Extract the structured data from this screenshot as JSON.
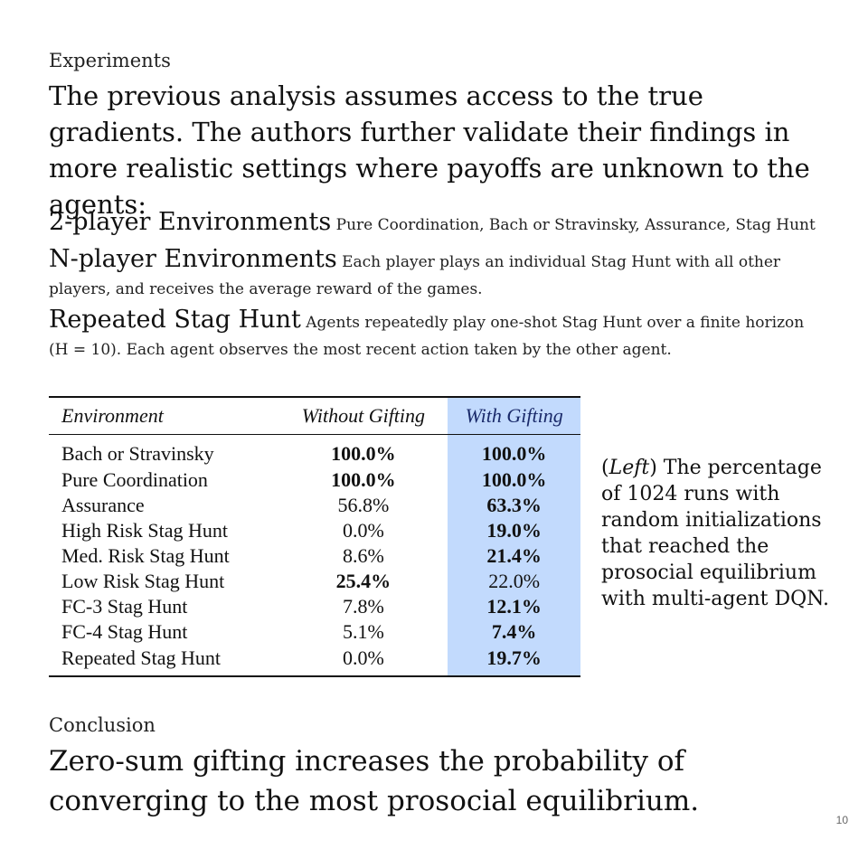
{
  "experiments": {
    "label": "Experiments",
    "lead": "The previous analysis assumes access to the true gradients. The authors further validate their findings in more realistic settings where payoffs are unknown to the agents:"
  },
  "environments": [
    {
      "name": "2-player Environments",
      "desc": "Pure Coordination, Bach or Stravinsky, Assurance, Stag Hunt"
    },
    {
      "name": "N-player Environments",
      "desc": "Each player plays an individual Stag Hunt with all other players, and receives the average reward of the games."
    },
    {
      "name": "Repeated Stag Hunt",
      "desc": "Agents repeatedly play one-shot Stag Hunt over a finite horizon (H = 10). Each agent observes the most recent action taken by the other agent."
    }
  ],
  "table": {
    "headers": {
      "environment": "Environment",
      "without": "Without Gifting",
      "with": "With Gifting"
    },
    "rows": [
      {
        "env": "Bach or Stravinsky",
        "without": "100.0%",
        "with": "100.0%",
        "bold_without": true,
        "bold_with": true
      },
      {
        "env": "Pure Coordination",
        "without": "100.0%",
        "with": "100.0%",
        "bold_without": true,
        "bold_with": true
      },
      {
        "env": "Assurance",
        "without": "56.8%",
        "with": "63.3%",
        "bold_without": false,
        "bold_with": true
      },
      {
        "env": "High Risk Stag Hunt",
        "without": "0.0%",
        "with": "19.0%",
        "bold_without": false,
        "bold_with": true
      },
      {
        "env": "Med. Risk Stag Hunt",
        "without": "8.6%",
        "with": "21.4%",
        "bold_without": false,
        "bold_with": true
      },
      {
        "env": "Low Risk Stag Hunt",
        "without": "25.4%",
        "with": "22.0%",
        "bold_without": true,
        "bold_with": false
      },
      {
        "env": "FC-3 Stag Hunt",
        "without": "7.8%",
        "with": "12.1%",
        "bold_without": false,
        "bold_with": true
      },
      {
        "env": "FC-4 Stag Hunt",
        "without": "5.1%",
        "with": "7.4%",
        "bold_without": false,
        "bold_with": true
      },
      {
        "env": "Repeated Stag Hunt",
        "without": "0.0%",
        "with": "19.7%",
        "bold_without": false,
        "bold_with": true
      }
    ],
    "highlight_color": "#c2dafd"
  },
  "caption": {
    "open": "(",
    "italic": "Left",
    "rest": ") The percentage of 1024 runs with random initializations that reached the prosocial equilibrium with multi-agent DQN."
  },
  "conclusion": {
    "label": "Conclusion",
    "text": "Zero-sum gifting increases the probability of converging to the most prosocial equilibrium."
  },
  "page_number": "10"
}
